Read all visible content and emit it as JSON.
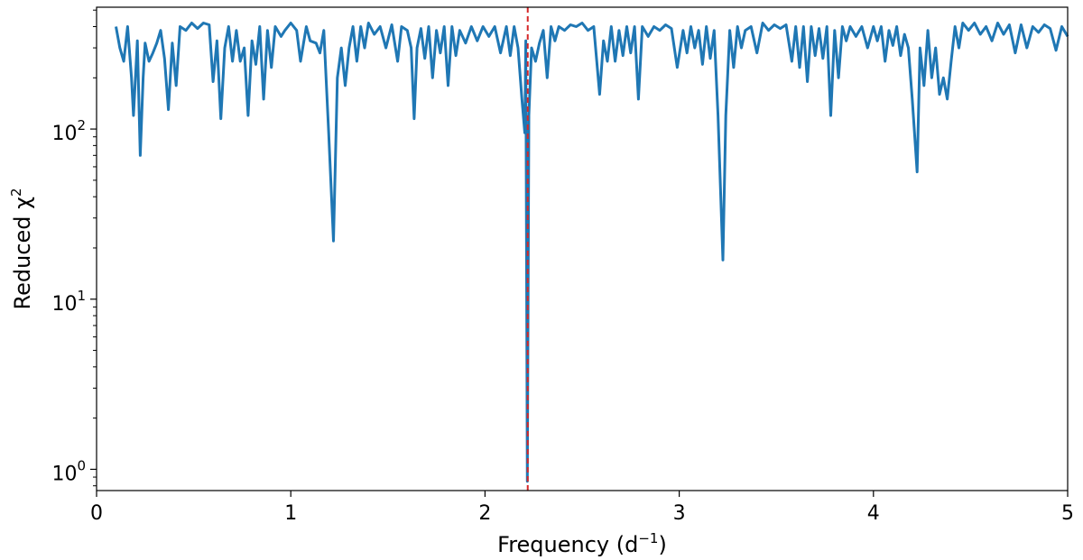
{
  "chart_data": {
    "type": "line",
    "xlabel": "Frequency (d",
    "xlabel_sup": "−1",
    "xlabel_end": ")",
    "ylabel": "Reduced χ",
    "ylabel_sup": "2",
    "xlim": [
      0,
      5
    ],
    "ylim": [
      0.75,
      520
    ],
    "yscale": "log",
    "grid": false,
    "x_ticks": [
      {
        "value": 0,
        "label": "0"
      },
      {
        "value": 1,
        "label": "1"
      },
      {
        "value": 2,
        "label": "2"
      },
      {
        "value": 3,
        "label": "3"
      },
      {
        "value": 4,
        "label": "4"
      },
      {
        "value": 5,
        "label": "5"
      }
    ],
    "y_ticks": [
      {
        "value": 1,
        "base": "10",
        "exp": "0"
      },
      {
        "value": 10,
        "base": "10",
        "exp": "1"
      },
      {
        "value": 100,
        "base": "10",
        "exp": "2"
      }
    ],
    "marker_line": {
      "x": 2.22,
      "color": "#d62728",
      "style": "dashed"
    },
    "series": [
      {
        "color": "#1f77b4",
        "points": [
          [
            0.1,
            400
          ],
          [
            0.12,
            300
          ],
          [
            0.14,
            250
          ],
          [
            0.16,
            400
          ],
          [
            0.18,
            200
          ],
          [
            0.19,
            120
          ],
          [
            0.21,
            330
          ],
          [
            0.225,
            70
          ],
          [
            0.24,
            200
          ],
          [
            0.25,
            320
          ],
          [
            0.27,
            250
          ],
          [
            0.29,
            280
          ],
          [
            0.31,
            320
          ],
          [
            0.33,
            380
          ],
          [
            0.35,
            260
          ],
          [
            0.37,
            130
          ],
          [
            0.39,
            320
          ],
          [
            0.41,
            180
          ],
          [
            0.43,
            400
          ],
          [
            0.46,
            380
          ],
          [
            0.49,
            420
          ],
          [
            0.52,
            390
          ],
          [
            0.55,
            420
          ],
          [
            0.58,
            410
          ],
          [
            0.6,
            190
          ],
          [
            0.62,
            330
          ],
          [
            0.64,
            115
          ],
          [
            0.66,
            300
          ],
          [
            0.68,
            400
          ],
          [
            0.7,
            250
          ],
          [
            0.72,
            380
          ],
          [
            0.74,
            250
          ],
          [
            0.76,
            300
          ],
          [
            0.78,
            120
          ],
          [
            0.8,
            330
          ],
          [
            0.82,
            240
          ],
          [
            0.84,
            400
          ],
          [
            0.86,
            150
          ],
          [
            0.88,
            380
          ],
          [
            0.9,
            230
          ],
          [
            0.92,
            400
          ],
          [
            0.95,
            350
          ],
          [
            0.97,
            380
          ],
          [
            1.0,
            420
          ],
          [
            1.03,
            380
          ],
          [
            1.05,
            250
          ],
          [
            1.08,
            400
          ],
          [
            1.1,
            330
          ],
          [
            1.13,
            320
          ],
          [
            1.15,
            280
          ],
          [
            1.17,
            380
          ],
          [
            1.195,
            95
          ],
          [
            1.22,
            22
          ],
          [
            1.24,
            200
          ],
          [
            1.26,
            300
          ],
          [
            1.28,
            180
          ],
          [
            1.3,
            300
          ],
          [
            1.32,
            400
          ],
          [
            1.34,
            250
          ],
          [
            1.36,
            400
          ],
          [
            1.38,
            300
          ],
          [
            1.4,
            420
          ],
          [
            1.43,
            360
          ],
          [
            1.46,
            400
          ],
          [
            1.49,
            300
          ],
          [
            1.52,
            410
          ],
          [
            1.55,
            250
          ],
          [
            1.57,
            400
          ],
          [
            1.6,
            380
          ],
          [
            1.62,
            300
          ],
          [
            1.635,
            115
          ],
          [
            1.65,
            300
          ],
          [
            1.67,
            390
          ],
          [
            1.69,
            260
          ],
          [
            1.71,
            400
          ],
          [
            1.73,
            200
          ],
          [
            1.75,
            380
          ],
          [
            1.77,
            280
          ],
          [
            1.79,
            400
          ],
          [
            1.81,
            180
          ],
          [
            1.83,
            400
          ],
          [
            1.85,
            270
          ],
          [
            1.87,
            380
          ],
          [
            1.9,
            320
          ],
          [
            1.93,
            400
          ],
          [
            1.96,
            330
          ],
          [
            1.99,
            400
          ],
          [
            2.02,
            350
          ],
          [
            2.05,
            400
          ],
          [
            2.08,
            280
          ],
          [
            2.11,
            400
          ],
          [
            2.13,
            270
          ],
          [
            2.15,
            400
          ],
          [
            2.17,
            300
          ],
          [
            2.19,
            150
          ],
          [
            2.205,
            95
          ],
          [
            2.21,
            330
          ],
          [
            2.218,
            0.85
          ],
          [
            2.226,
            120
          ],
          [
            2.24,
            300
          ],
          [
            2.26,
            250
          ],
          [
            2.28,
            320
          ],
          [
            2.3,
            380
          ],
          [
            2.32,
            200
          ],
          [
            2.34,
            400
          ],
          [
            2.36,
            330
          ],
          [
            2.38,
            400
          ],
          [
            2.41,
            380
          ],
          [
            2.44,
            410
          ],
          [
            2.47,
            400
          ],
          [
            2.5,
            420
          ],
          [
            2.53,
            380
          ],
          [
            2.56,
            400
          ],
          [
            2.59,
            160
          ],
          [
            2.61,
            330
          ],
          [
            2.63,
            250
          ],
          [
            2.65,
            400
          ],
          [
            2.67,
            250
          ],
          [
            2.69,
            380
          ],
          [
            2.71,
            270
          ],
          [
            2.73,
            400
          ],
          [
            2.75,
            280
          ],
          [
            2.77,
            400
          ],
          [
            2.79,
            150
          ],
          [
            2.81,
            400
          ],
          [
            2.84,
            350
          ],
          [
            2.87,
            400
          ],
          [
            2.9,
            380
          ],
          [
            2.93,
            410
          ],
          [
            2.96,
            390
          ],
          [
            2.99,
            230
          ],
          [
            3.02,
            380
          ],
          [
            3.04,
            280
          ],
          [
            3.06,
            400
          ],
          [
            3.08,
            300
          ],
          [
            3.1,
            380
          ],
          [
            3.12,
            240
          ],
          [
            3.14,
            400
          ],
          [
            3.16,
            260
          ],
          [
            3.18,
            380
          ],
          [
            3.2,
            120
          ],
          [
            3.225,
            17
          ],
          [
            3.24,
            120
          ],
          [
            3.26,
            380
          ],
          [
            3.28,
            230
          ],
          [
            3.3,
            400
          ],
          [
            3.32,
            300
          ],
          [
            3.34,
            380
          ],
          [
            3.37,
            400
          ],
          [
            3.4,
            280
          ],
          [
            3.43,
            420
          ],
          [
            3.46,
            380
          ],
          [
            3.49,
            410
          ],
          [
            3.52,
            390
          ],
          [
            3.55,
            410
          ],
          [
            3.58,
            250
          ],
          [
            3.6,
            400
          ],
          [
            3.62,
            230
          ],
          [
            3.64,
            400
          ],
          [
            3.66,
            190
          ],
          [
            3.68,
            400
          ],
          [
            3.7,
            270
          ],
          [
            3.72,
            390
          ],
          [
            3.74,
            260
          ],
          [
            3.76,
            400
          ],
          [
            3.78,
            120
          ],
          [
            3.8,
            380
          ],
          [
            3.82,
            200
          ],
          [
            3.84,
            400
          ],
          [
            3.86,
            330
          ],
          [
            3.88,
            400
          ],
          [
            3.91,
            350
          ],
          [
            3.94,
            400
          ],
          [
            3.97,
            300
          ],
          [
            4.0,
            400
          ],
          [
            4.02,
            330
          ],
          [
            4.04,
            400
          ],
          [
            4.06,
            250
          ],
          [
            4.08,
            380
          ],
          [
            4.1,
            310
          ],
          [
            4.12,
            400
          ],
          [
            4.14,
            270
          ],
          [
            4.16,
            360
          ],
          [
            4.18,
            300
          ],
          [
            4.2,
            150
          ],
          [
            4.225,
            56
          ],
          [
            4.24,
            300
          ],
          [
            4.26,
            180
          ],
          [
            4.28,
            380
          ],
          [
            4.3,
            200
          ],
          [
            4.32,
            300
          ],
          [
            4.34,
            160
          ],
          [
            4.36,
            200
          ],
          [
            4.38,
            150
          ],
          [
            4.4,
            250
          ],
          [
            4.42,
            400
          ],
          [
            4.44,
            300
          ],
          [
            4.46,
            420
          ],
          [
            4.49,
            380
          ],
          [
            4.52,
            420
          ],
          [
            4.55,
            360
          ],
          [
            4.58,
            400
          ],
          [
            4.61,
            330
          ],
          [
            4.64,
            420
          ],
          [
            4.67,
            360
          ],
          [
            4.7,
            410
          ],
          [
            4.73,
            280
          ],
          [
            4.76,
            410
          ],
          [
            4.79,
            300
          ],
          [
            4.82,
            400
          ],
          [
            4.85,
            370
          ],
          [
            4.88,
            410
          ],
          [
            4.91,
            390
          ],
          [
            4.94,
            290
          ],
          [
            4.97,
            400
          ],
          [
            5.0,
            350
          ]
        ]
      }
    ]
  }
}
